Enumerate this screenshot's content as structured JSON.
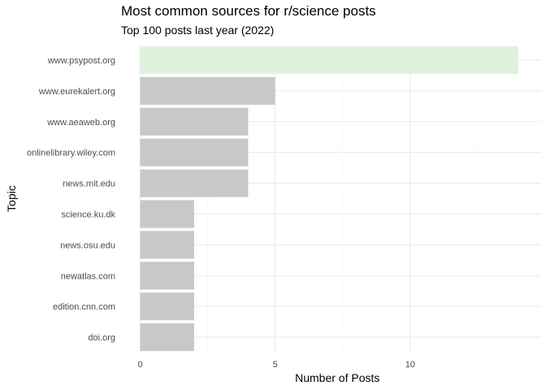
{
  "chart_data": {
    "type": "bar",
    "orientation": "horizontal",
    "title": "Most common sources for r/science posts",
    "subtitle": "Top 100 posts last year (2022)",
    "xlabel": "Number of Posts",
    "ylabel": "Topic",
    "categories": [
      "www.psypost.org",
      "www.eurekalert.org",
      "www.aeaweb.org",
      "onlinelibrary.wiley.com",
      "news.mit.edu",
      "science.ku.dk",
      "news.osu.edu",
      "newatlas.com",
      "edition.cnn.com",
      "doi.org"
    ],
    "values": [
      14,
      5,
      4,
      4,
      4,
      2,
      2,
      2,
      2,
      2
    ],
    "xlim": [
      0,
      14.7
    ],
    "xticks": [
      0,
      5,
      10
    ],
    "grid": true,
    "highlight_category": "www.psypost.org",
    "colors": {
      "bar": "#c8c8c8",
      "highlight": "#dff3dc",
      "grid_major": "#ebebeb",
      "grid_minor": "#f3f3f3"
    }
  }
}
